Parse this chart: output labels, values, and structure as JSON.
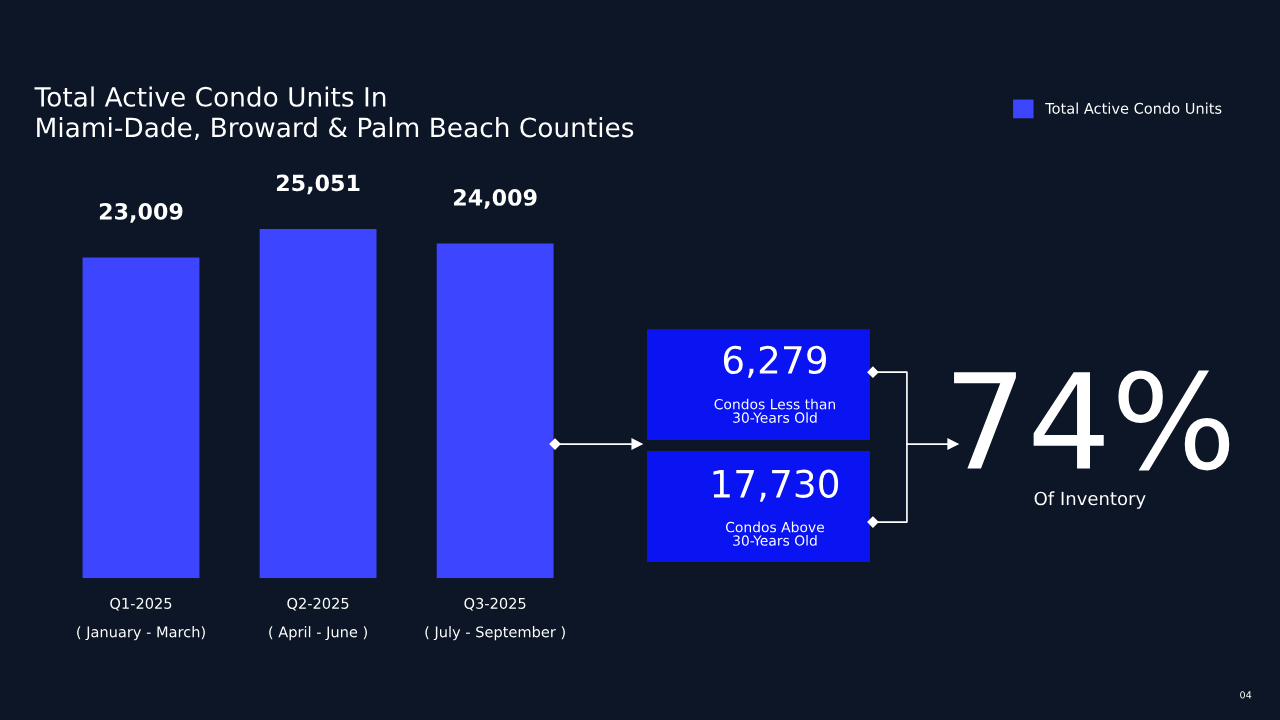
{
  "chart_data": [
    {
      "type": "bar",
      "title": "Total Active Condo Units In\nMiami-Dade, Broward & Palm Beach Counties",
      "categories": [
        "Q1-2025\n( January - March)",
        "Q2-2025\n( April - June )",
        "Q3-2025\n( July - September )"
      ],
      "series": [
        {
          "name": "Total Active Condo Units",
          "color": "#3d45ff",
          "values": [
            23009,
            25051,
            24009
          ],
          "value_labels": [
            "23,009",
            "25,051",
            "24,009"
          ]
        }
      ],
      "legend": "top right",
      "annotations": [
        "04"
      ]
    },
    {
      "type": "other",
      "color": "#0a14f2",
      "annotations": [
        "6,279",
        "Condos Less than\n30-Years Old",
        "17,730",
        "Condos Above\n30-Years Old",
        "74%",
        "Of Inventory"
      ]
    }
  ]
}
